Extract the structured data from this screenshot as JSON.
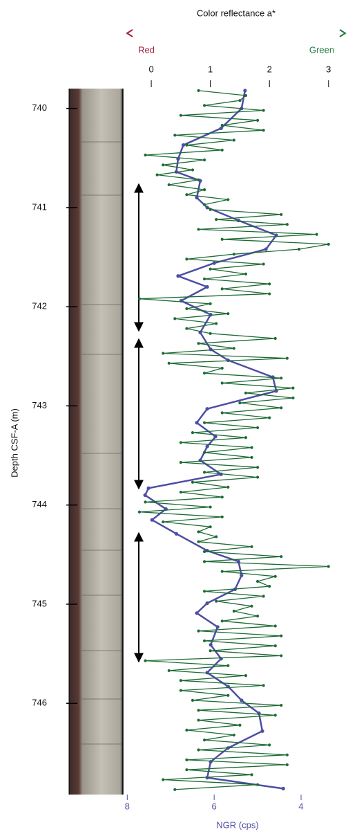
{
  "chart_data": {
    "type": "line",
    "title": "Color reflectance a*",
    "x_end_labels": [
      "Red",
      "Green"
    ],
    "x2_label": "NGR (cps)",
    "y_label": "Depth CSF-A (m)",
    "xlim": [
      -0.48,
      3.33
    ],
    "xticks": [
      0,
      1,
      2,
      3
    ],
    "x2lim": [
      8.1,
      2.92
    ],
    "x2ticks": [
      8,
      6,
      4
    ],
    "ylim": [
      739.8,
      746.92
    ],
    "yticks": [
      740,
      741,
      742,
      743,
      744,
      745,
      746
    ],
    "y_inverted": true,
    "series": [
      {
        "color": "#1e6b35",
        "axis": "x",
        "depth": [
          739.82,
          739.87,
          739.92,
          739.97,
          740.02,
          740.07,
          740.12,
          740.17,
          740.22,
          740.27,
          740.32,
          740.37,
          740.42,
          740.47,
          740.52,
          740.57,
          740.62,
          740.67,
          740.72,
          740.77,
          740.82,
          740.87,
          740.92,
          740.97,
          741.02,
          741.07,
          741.12,
          741.17,
          741.22,
          741.27,
          741.32,
          741.37,
          741.42,
          741.47,
          741.52,
          741.57,
          741.62,
          741.67,
          741.72,
          741.77,
          741.82,
          741.87,
          741.92,
          741.97,
          742.02,
          742.07,
          742.12,
          742.17,
          742.22,
          742.27,
          742.32,
          742.37,
          742.42,
          742.47,
          742.52,
          742.57,
          742.62,
          742.67,
          742.72,
          742.77,
          742.82,
          742.87,
          742.92,
          742.97,
          743.02,
          743.07,
          743.12,
          743.17,
          743.22,
          743.27,
          743.32,
          743.37,
          743.42,
          743.47,
          743.52,
          743.57,
          743.62,
          743.67,
          743.72,
          743.77,
          743.82,
          743.87,
          743.92,
          743.97,
          744.02,
          744.07,
          744.12,
          744.17,
          744.22,
          744.27,
          744.32,
          744.37,
          744.42,
          744.47,
          744.52,
          744.57,
          744.62,
          744.67,
          744.72,
          744.77,
          744.82,
          744.87,
          744.92,
          744.97,
          745.02,
          745.07,
          745.12,
          745.17,
          745.22,
          745.27,
          745.32,
          745.37,
          745.42,
          745.47,
          745.52,
          745.57,
          745.62,
          745.67,
          745.72,
          745.77,
          745.82,
          745.87,
          745.92,
          745.97,
          746.02,
          746.07,
          746.12,
          746.17,
          746.22,
          746.27,
          746.32,
          746.37,
          746.42,
          746.47,
          746.52,
          746.57,
          746.62,
          746.67,
          746.72,
          746.77,
          746.82,
          746.87
        ],
        "values": [
          0.8,
          1.6,
          1.5,
          0.9,
          1.9,
          0.5,
          1.8,
          1.2,
          1.9,
          0.4,
          1.4,
          0.6,
          1.2,
          -0.1,
          0.9,
          0.2,
          0.7,
          0.1,
          0.8,
          0.3,
          0.9,
          0.6,
          1.3,
          0.9,
          1.0,
          2.2,
          1.1,
          2.3,
          0.8,
          2.8,
          1.2,
          3.0,
          2.5,
          1.4,
          0.6,
          1.9,
          1.0,
          1.6,
          0.9,
          2.0,
          1.2,
          2.0,
          -0.2,
          1.0,
          0.6,
          1.3,
          0.4,
          1.1,
          0.6,
          1.0,
          2.1,
          0.8,
          1.4,
          0.2,
          2.3,
          0.3,
          1.2,
          0.9,
          2.2,
          1.2,
          2.4,
          1.6,
          2.4,
          1.5,
          2.2,
          1.2,
          2.0,
          0.9,
          1.8,
          0.7,
          1.6,
          0.5,
          1.7,
          0.9,
          1.7,
          0.5,
          1.8,
          0.9,
          1.8,
          0.7,
          1.3,
          0.5,
          1.2,
          -0.1,
          1.0,
          -0.2,
          1.2,
          0.2,
          1.0,
          0.8,
          1.1,
          0.8,
          1.7,
          0.9,
          2.2,
          0.9,
          3.0,
          1.2,
          2.1,
          1.8,
          2.0,
          0.9,
          1.9,
          1.1,
          1.7,
          1.4,
          1.8,
          1.2,
          2.1,
          0.8,
          2.2,
          0.9,
          2.1,
          1.0,
          2.2,
          -0.1,
          1.3,
          0.3,
          1.6,
          0.5,
          1.9,
          0.5,
          1.3,
          0.7,
          2.2,
          0.8,
          2.1,
          0.8,
          1.5,
          0.6,
          1.4,
          0.9,
          2.0,
          0.8,
          2.3,
          0.6,
          2.3,
          0.6,
          1.7,
          0.2,
          1.8,
          0.4
        ]
      },
      {
        "color": "#4d4da6",
        "axis": "x2",
        "depth": [
          739.82,
          740.0,
          740.2,
          740.37,
          740.51,
          740.64,
          740.73,
          740.9,
          741.0,
          741.13,
          741.28,
          741.42,
          741.56,
          741.69,
          741.8,
          741.94,
          742.08,
          742.26,
          742.43,
          742.54,
          742.71,
          742.85,
          743.03,
          743.17,
          743.31,
          743.41,
          743.55,
          743.69,
          743.83,
          743.9,
          744.04,
          744.15,
          744.29,
          744.46,
          744.57,
          744.71,
          744.85,
          744.99,
          745.09,
          745.23,
          745.41,
          745.55,
          745.69,
          745.83,
          745.97,
          746.1,
          746.28,
          746.45,
          746.59,
          746.75,
          746.86
        ],
        "values": [
          5.29,
          5.37,
          5.84,
          6.71,
          6.83,
          6.87,
          6.32,
          6.4,
          6.16,
          5.44,
          4.57,
          4.81,
          6.0,
          6.83,
          6.16,
          6.76,
          6.08,
          6.32,
          6.08,
          5.68,
          4.65,
          4.57,
          6.16,
          6.4,
          5.97,
          6.16,
          6.32,
          5.84,
          7.51,
          7.59,
          7.11,
          7.43,
          6.87,
          6.16,
          5.44,
          5.37,
          5.52,
          6.16,
          6.4,
          5.92,
          6.08,
          5.84,
          6.16,
          5.68,
          5.37,
          4.97,
          4.89,
          5.68,
          6.08,
          6.16,
          4.41
        ]
      }
    ]
  }
}
